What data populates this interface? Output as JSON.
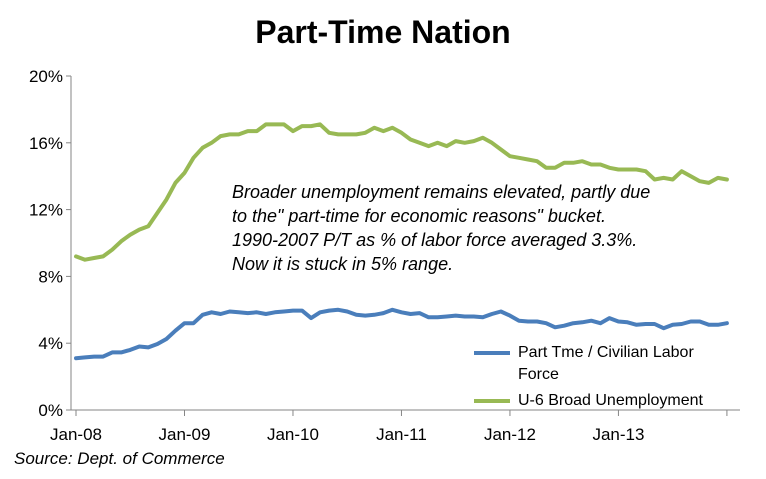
{
  "chart_data": {
    "type": "line",
    "title": "Part-Time Nation",
    "annotation": "Broader unemployment remains elevated, partly due to the\" part-time for economic reasons\" bucket. 1990-2007  P/T  as % of labor force averaged 3.3%. Now it is stuck in 5% range.",
    "source": "Source: Dept. of Commerce",
    "x_start": "2008-01",
    "x_end": "2013-10",
    "x_tick_labels": [
      "Jan-08",
      "Jan-09",
      "Jan-10",
      "Jan-11",
      "Jan-12",
      "Jan-13"
    ],
    "y_tick_labels": [
      "0%",
      "4%",
      "8%",
      "12%",
      "16%",
      "20%"
    ],
    "ylim": [
      0,
      20
    ],
    "y_unit": "%",
    "grid": false,
    "legend_position": "bottom-right",
    "series": [
      {
        "name": "Part Tme / Civilian Labor Force",
        "color": "#4a7ebb",
        "values": [
          3.1,
          3.15,
          3.2,
          3.2,
          3.45,
          3.45,
          3.6,
          3.8,
          3.75,
          3.95,
          4.25,
          4.75,
          5.2,
          5.2,
          5.7,
          5.85,
          5.75,
          5.9,
          5.85,
          5.8,
          5.85,
          5.75,
          5.85,
          5.9,
          5.95,
          5.95,
          5.5,
          5.85,
          5.95,
          6.0,
          5.9,
          5.7,
          5.65,
          5.7,
          5.8,
          6.0,
          5.85,
          5.75,
          5.8,
          5.55,
          5.55,
          5.6,
          5.65,
          5.6,
          5.6,
          5.55,
          5.75,
          5.9,
          5.65,
          5.35,
          5.3,
          5.3,
          5.2,
          4.95,
          5.05,
          5.2,
          5.25,
          5.35,
          5.2,
          5.5,
          5.3,
          5.25,
          5.1,
          5.15,
          5.15,
          4.9,
          5.1,
          5.15,
          5.3,
          5.3,
          5.1,
          5.1,
          5.2
        ]
      },
      {
        "name": "U-6 Broad Unemployment",
        "color": "#98b954",
        "values": [
          9.2,
          9.0,
          9.1,
          9.2,
          9.6,
          10.1,
          10.5,
          10.8,
          11.0,
          11.8,
          12.6,
          13.6,
          14.2,
          15.1,
          15.7,
          16.0,
          16.4,
          16.5,
          16.5,
          16.7,
          16.7,
          17.1,
          17.1,
          17.1,
          16.7,
          17.0,
          17.0,
          17.1,
          16.6,
          16.5,
          16.5,
          16.5,
          16.6,
          16.9,
          16.7,
          16.9,
          16.6,
          16.2,
          16.0,
          15.8,
          16.0,
          15.8,
          16.1,
          16.0,
          16.1,
          16.3,
          16.0,
          15.6,
          15.2,
          15.1,
          15.0,
          14.9,
          14.5,
          14.5,
          14.8,
          14.8,
          14.9,
          14.7,
          14.7,
          14.5,
          14.4,
          14.4,
          14.4,
          14.3,
          13.8,
          13.9,
          13.8,
          14.3,
          14.0,
          13.7,
          13.6,
          13.9,
          13.8
        ]
      }
    ]
  }
}
